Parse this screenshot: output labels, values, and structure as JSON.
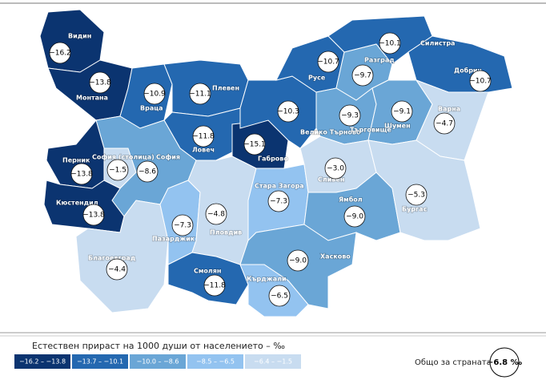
{
  "chart_data": {
    "type": "choropleth",
    "title": "Естествен прираст на 1000 души от населението – ‰",
    "categories": [
      "Видин",
      "Монтана",
      "Враца",
      "Плевен",
      "Ловеч",
      "Габрово",
      "Велико Търново",
      "Русе",
      "Разград",
      "Силистра",
      "Добрич",
      "Търговище",
      "Шумен",
      "Варна",
      "София (столица)",
      "София",
      "Перник",
      "Кюстендил",
      "Благоевград",
      "Пазарджик",
      "Пловдив",
      "Смолян",
      "Стара Загора",
      "Сливен",
      "Ямбол",
      "Бургас",
      "Хасково",
      "Кърджали"
    ],
    "values": [
      -16.2,
      -13.8,
      -10.9,
      -11.1,
      -11.8,
      -15.1,
      -10.3,
      -10.7,
      -9.7,
      -10.1,
      -10.7,
      -9.3,
      -9.1,
      -4.7,
      -1.5,
      -8.6,
      -13.8,
      -13.8,
      -4.4,
      -7.3,
      -4.8,
      -11.8,
      -7.3,
      -3.0,
      -9.0,
      -5.3,
      -9.0,
      -6.5
    ],
    "value_labels": [
      "−16.2",
      "−13.8",
      "−10.9",
      "−11.1",
      "−11.8",
      "−15.1",
      "−10.3",
      "−10.7",
      "−9.7",
      "−10.1",
      "−10.7",
      "−9.3",
      "−9.1",
      "−4.7",
      "−1.5",
      "−8.6",
      "−13.8",
      "−13.8",
      "−4.4",
      "−7.3",
      "−4.8",
      "−11.8",
      "−7.3",
      "−3.0",
      "−9.0",
      "−5.3",
      "−9.0",
      "−6.5"
    ],
    "bins": [
      {
        "label": "−16.2 – −13.8",
        "min": -16.2,
        "max": -13.8,
        "color": "#0b3470"
      },
      {
        "label": "−13.7 – −10.1",
        "min": -13.7,
        "max": -10.1,
        "color": "#2468b0"
      },
      {
        "label": "−10.0 – −8.6",
        "min": -10.0,
        "max": -8.6,
        "color": "#6aa6d6"
      },
      {
        "label": "−8.5 – −6.5",
        "min": -8.5,
        "max": -6.5,
        "color": "#93c3f0"
      },
      {
        "label": "−6.4 – −1.5",
        "min": -6.4,
        "max": -1.5,
        "color": "#c8dcf0"
      }
    ],
    "total": {
      "name": "Общо за страната",
      "value": -6.8,
      "label": "−6.8 ‰"
    }
  }
}
